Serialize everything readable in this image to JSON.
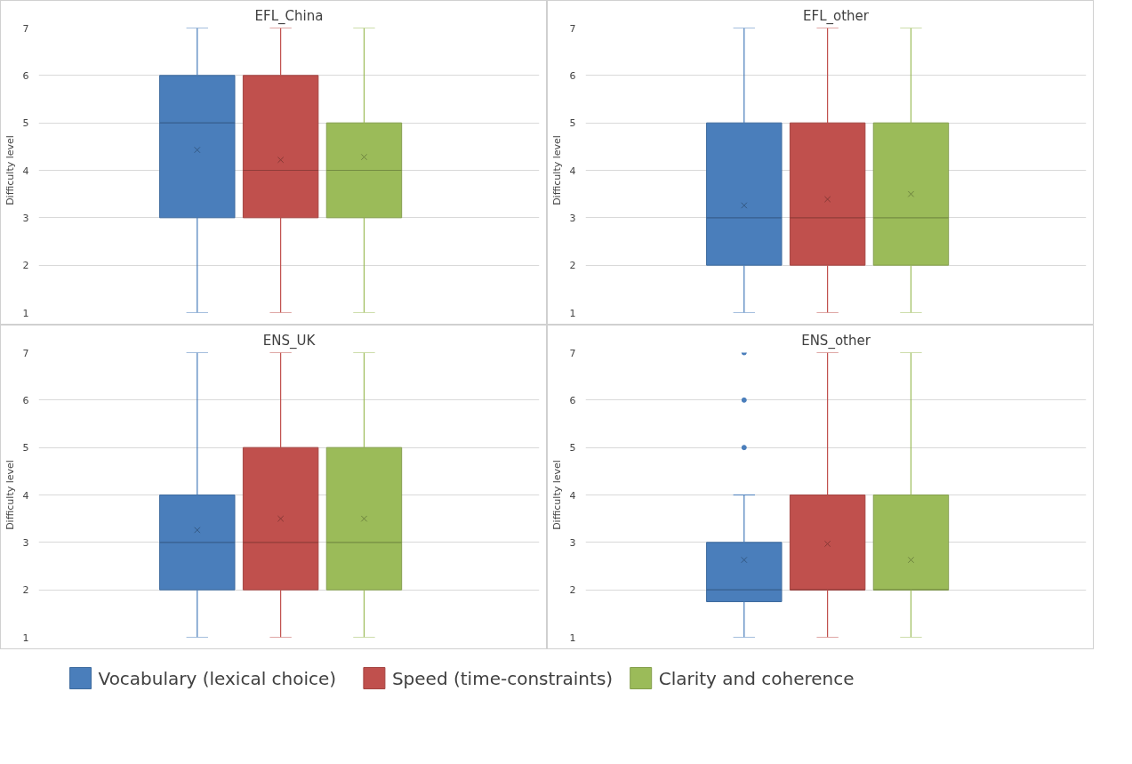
{
  "chart_data": [
    {
      "type": "box",
      "title": "EFL_China",
      "ylabel": "Difficulty level",
      "categories": [
        null
      ],
      "ylim": [
        1,
        7
      ],
      "yticks": [
        1,
        2,
        3,
        4,
        5,
        6,
        7
      ],
      "grid": "y",
      "tick_labels": "y",
      "marker": "cross",
      "legend": "bottom",
      "series": [
        {
          "name": "Vocabulary (lexical choice)",
          "color": "#4a7ebb",
          "boxes": [
            {
              "low": 1,
              "q1": 3,
              "median": 5,
              "q3": 6,
              "high": 7,
              "mean": 4.43
            }
          ]
        },
        {
          "name": "Speed (time-constraints)",
          "color": "#c0504d",
          "boxes": [
            {
              "low": 1,
              "q1": 3,
              "median": 4,
              "q3": 6,
              "high": 7,
              "mean": 4.22
            }
          ]
        },
        {
          "name": "Clarity and coherence",
          "color": "#9bbb59",
          "boxes": [
            {
              "low": 1,
              "q1": 3,
              "median": 4,
              "q3": 5,
              "high": 7,
              "mean": 4.28
            }
          ]
        }
      ]
    },
    {
      "type": "box",
      "title": "EFL_other",
      "ylabel": "Difficulty level",
      "categories": [
        null
      ],
      "ylim": [
        1,
        7
      ],
      "yticks": [
        1,
        2,
        3,
        4,
        5,
        6,
        7
      ],
      "grid": "y",
      "tick_labels": "y",
      "marker": "cross",
      "series": [
        {
          "color": "#4a7ebb",
          "boxes": [
            {
              "low": 1,
              "q1": 2,
              "median": 3,
              "q3": 5,
              "high": 7,
              "mean": 3.26
            }
          ]
        },
        {
          "color": "#c0504d",
          "boxes": [
            {
              "low": 1,
              "q1": 2,
              "median": 3,
              "q3": 5,
              "high": 7,
              "mean": 3.39
            }
          ]
        },
        {
          "color": "#9bbb59",
          "boxes": [
            {
              "low": 1,
              "q1": 2,
              "median": 3,
              "q3": 5,
              "high": 7,
              "mean": 3.5
            }
          ]
        }
      ]
    },
    {
      "type": "box",
      "title": "ENS_UK",
      "ylabel": "Difficulty level",
      "categories": [
        null
      ],
      "ylim": [
        1,
        7
      ],
      "yticks": [
        1,
        2,
        3,
        4,
        5,
        6,
        7
      ],
      "grid": "y",
      "tick_labels": "y",
      "marker": "cross",
      "series": [
        {
          "color": "#4a7ebb",
          "boxes": [
            {
              "low": 1,
              "q1": 2,
              "median": 3,
              "q3": 4,
              "high": 7,
              "mean": 3.26
            }
          ]
        },
        {
          "color": "#c0504d",
          "boxes": [
            {
              "low": 1,
              "q1": 2,
              "median": 3,
              "q3": 5,
              "high": 7,
              "mean": 3.5
            }
          ]
        },
        {
          "color": "#9bbb59",
          "boxes": [
            {
              "low": 1,
              "q1": 2,
              "median": 3,
              "q3": 5,
              "high": 7,
              "mean": 3.5
            }
          ]
        }
      ]
    },
    {
      "type": "box",
      "title": "ENS_other",
      "ylabel": "Difficulty level",
      "categories": [
        null
      ],
      "ylim": [
        1,
        7
      ],
      "yticks": [
        1,
        2,
        3,
        4,
        5,
        6,
        7
      ],
      "grid": "y",
      "tick_labels": "y",
      "marker": "cross",
      "series": [
        {
          "color": "#4a7ebb",
          "boxes": [
            {
              "low": 1,
              "q1": 1.75,
              "median": 2,
              "q3": 3,
              "high": 4,
              "mean": 2.63,
              "outliers": [
                5,
                6,
                7
              ]
            }
          ]
        },
        {
          "color": "#c0504d",
          "boxes": [
            {
              "low": 1,
              "q1": 2,
              "median": 2,
              "q3": 4,
              "high": 7,
              "mean": 2.97
            }
          ]
        },
        {
          "color": "#9bbb59",
          "boxes": [
            {
              "low": 1,
              "q1": 2,
              "median": 2,
              "q3": 4,
              "high": 7,
              "mean": 2.63
            }
          ]
        }
      ]
    }
  ]
}
